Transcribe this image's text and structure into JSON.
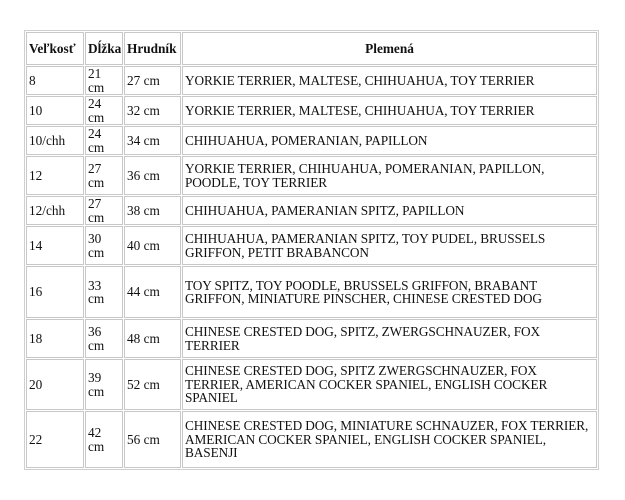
{
  "headers": [
    "Veľkosť",
    "Dĺžka",
    "Hrudník",
    "Plemená"
  ],
  "rows": [
    {
      "size": "8",
      "length": "21 cm",
      "chest": "27 cm",
      "breeds": "YORKIE TERRIER, MALTESE, CHIHUAHUA, TOY TERRIER"
    },
    {
      "size": "10",
      "length": "24 cm",
      "chest": "32 cm",
      "breeds": "YORKIE TERRIER, MALTESE, CHIHUAHUA, TOY TERRIER"
    },
    {
      "size": "10/chh",
      "length": "24 cm",
      "chest": "34 cm",
      "breeds": "CHIHUAHUA, POMERANIAN, PAPILLON"
    },
    {
      "size": "12",
      "length": "27 cm",
      "chest": "36 cm",
      "breeds": "YORKIE TERRIER, CHIHUAHUA, POMERANIAN, PAPILLON, POODLE, TOY TERRIER"
    },
    {
      "size": "12/chh",
      "length": "27 cm",
      "chest": "38 cm",
      "breeds": "CHIHUAHUA, PAMERANIAN SPITZ, PAPILLON"
    },
    {
      "size": "14",
      "length": "30 cm",
      "chest": "40 cm",
      "breeds": "CHIHUAHUA, PAMERANIAN SPITZ, TOY PUDEL, BRUSSELS GRIFFON, PETIT BRABANCON"
    },
    {
      "size": "16",
      "length": "33 cm",
      "chest": "44 cm",
      "breeds": "TOY SPITZ, TOY POODLE, BRUSSELS GRIFFON, BRABANT GRIFFON, MINIATURE PINSCHER, CHINESE CRESTED DOG"
    },
    {
      "size": "18",
      "length": "36 cm",
      "chest": "48 cm",
      "breeds": "CHINESE CRESTED DOG, SPITZ,  ZWERGSCHNAUZER, FOX TERRIER"
    },
    {
      "size": "20",
      "length": "39 cm",
      "chest": "52 cm",
      "breeds": "CHINESE CRESTED DOG, SPITZ ZWERGSCHNAUZER, FOX TERRIER, AMERICAN COCKER SPANIEL, ENGLISH COCKER SPANIEL"
    },
    {
      "size": "22",
      "length": "42 cm",
      "chest": "56 cm",
      "breeds": "CHINESE CRESTED DOG, MINIATURE SCHNAUZER, FOX TERRIER, AMERICAN COCKER SPANIEL, ENGLISH COCKER SPANIEL, BASENJI"
    }
  ]
}
